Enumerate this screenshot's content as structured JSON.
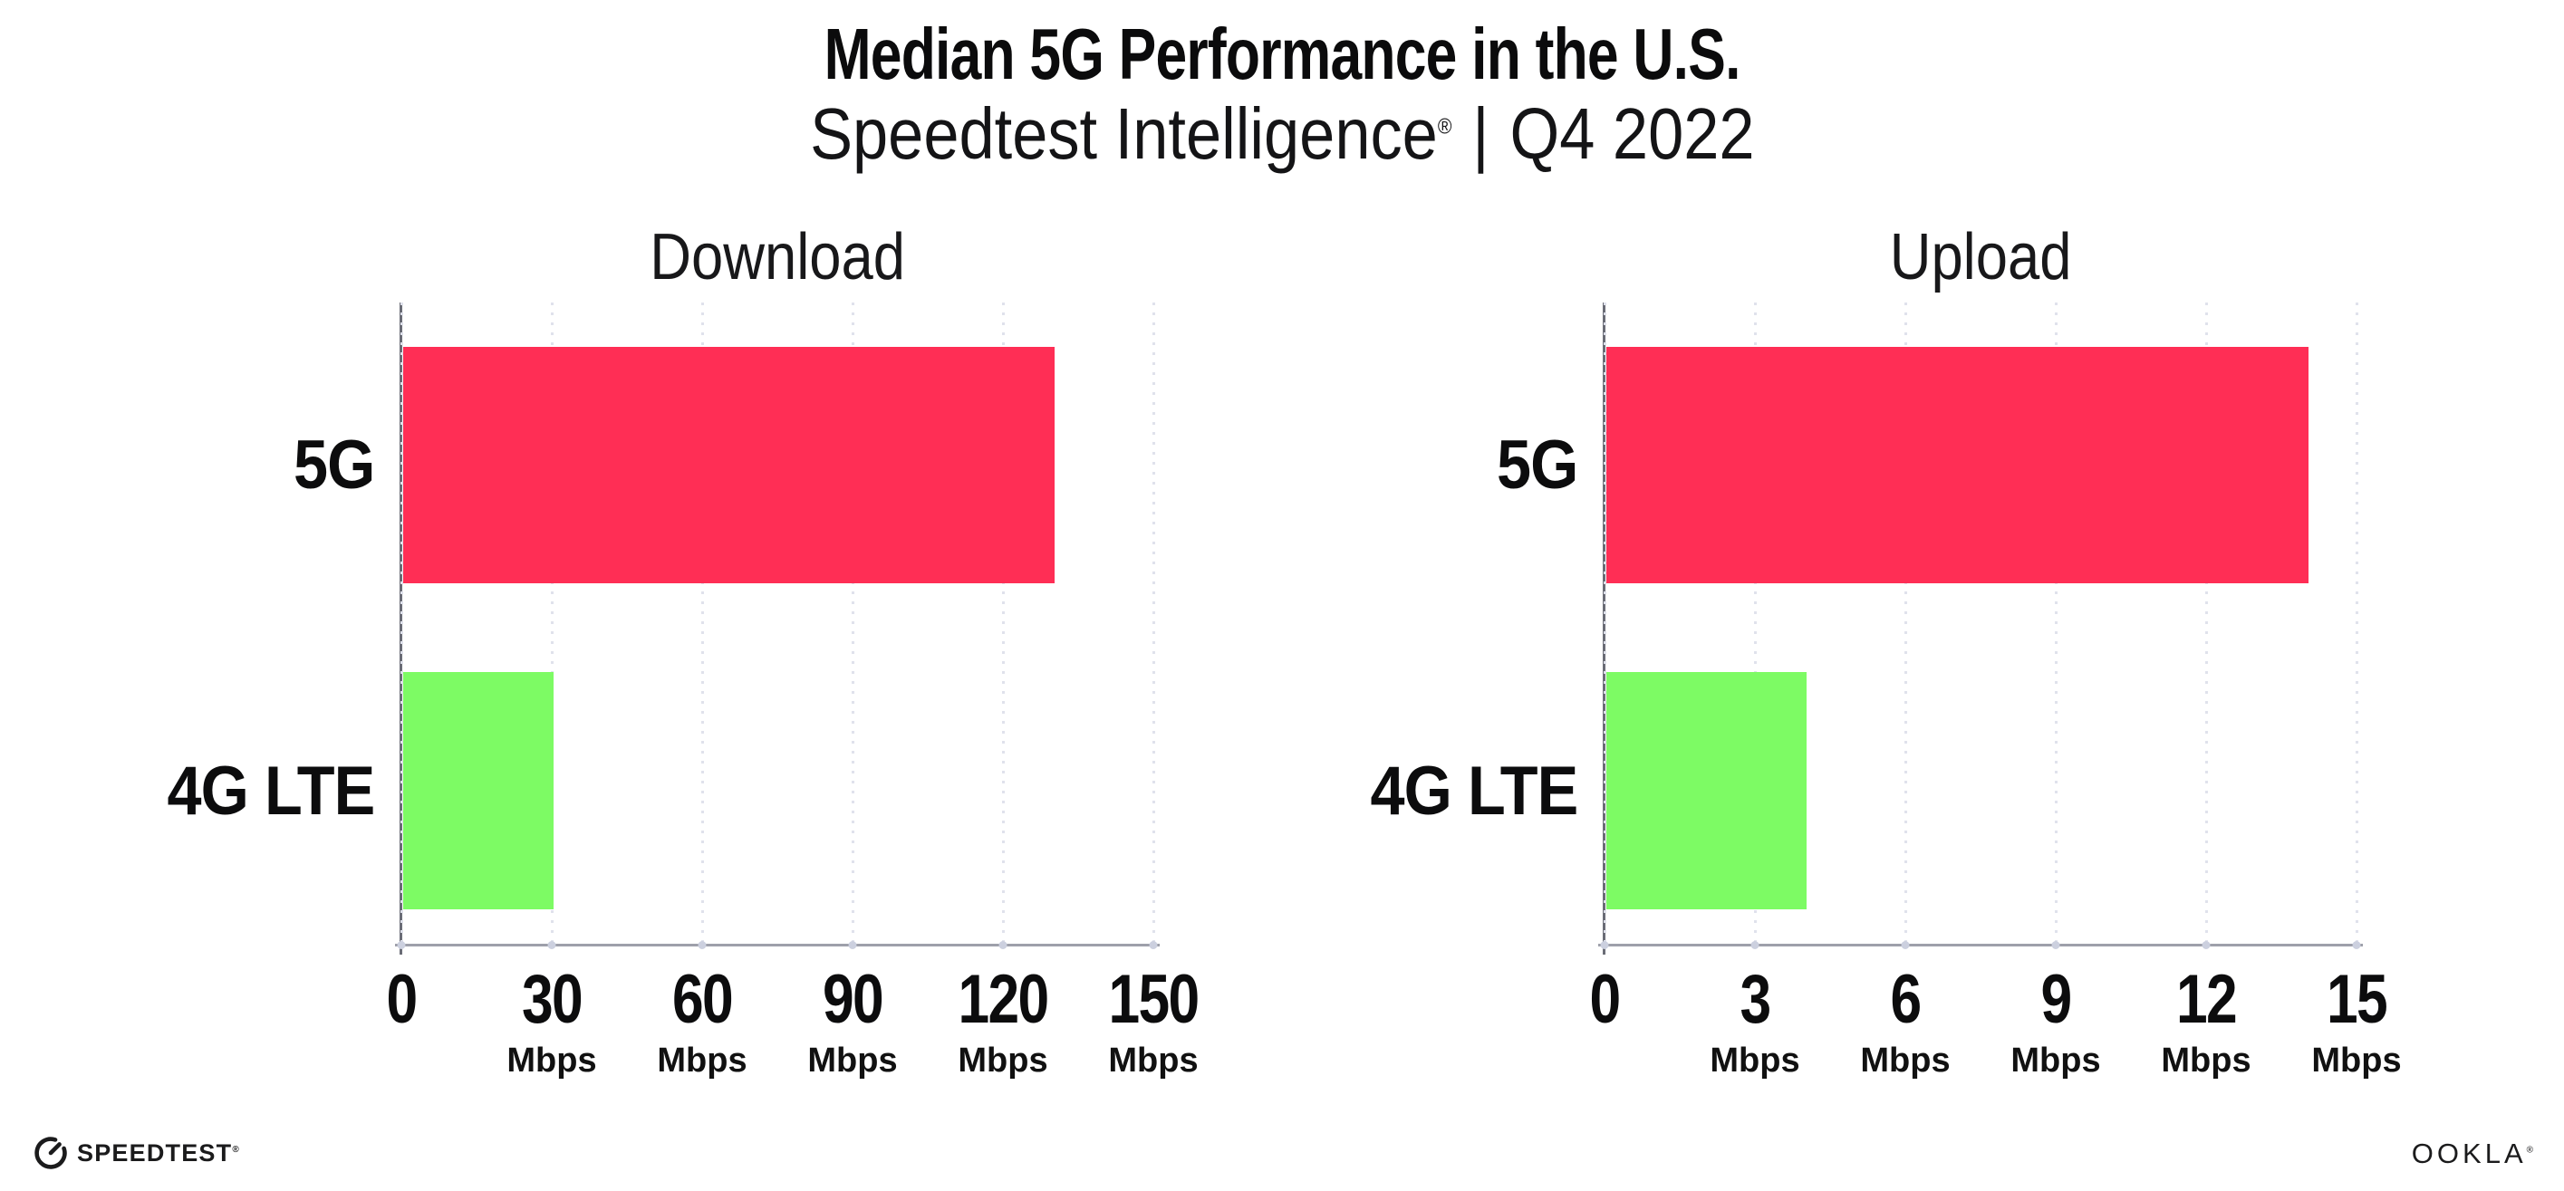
{
  "page": {
    "title": "Median 5G Performance in the U.S.",
    "subtitle": {
      "brand": "Speedtest Intelligence",
      "reg_mark": "®",
      "separator": "|",
      "period": "Q4 2022"
    }
  },
  "chart_data": [
    {
      "type": "bar",
      "orientation": "horizontal",
      "title": "Download",
      "categories": [
        "5G",
        "4G LTE"
      ],
      "values": [
        130,
        30
      ],
      "unit": "Mbps",
      "xlim": [
        0,
        150
      ],
      "xticks": [
        0,
        30,
        60,
        90,
        120,
        150
      ],
      "bar_colors": [
        "#FF2E55",
        "#7DFB64"
      ],
      "grid": "dotted-vertical",
      "legend": "none"
    },
    {
      "type": "bar",
      "orientation": "horizontal",
      "title": "Upload",
      "categories": [
        "5G",
        "4G LTE"
      ],
      "values": [
        14,
        4
      ],
      "unit": "Mbps",
      "xlim": [
        0,
        15
      ],
      "xticks": [
        0,
        3,
        6,
        9,
        12,
        15
      ],
      "bar_colors": [
        "#FF2E55",
        "#7DFB64"
      ],
      "grid": "dotted-vertical",
      "legend": "none"
    }
  ],
  "footer": {
    "speedtest": {
      "label": "SPEEDTEST",
      "mark": "®",
      "icon": "speedtest-gauge-icon"
    },
    "ookla": {
      "label": "OOKLA",
      "mark": "®"
    }
  }
}
